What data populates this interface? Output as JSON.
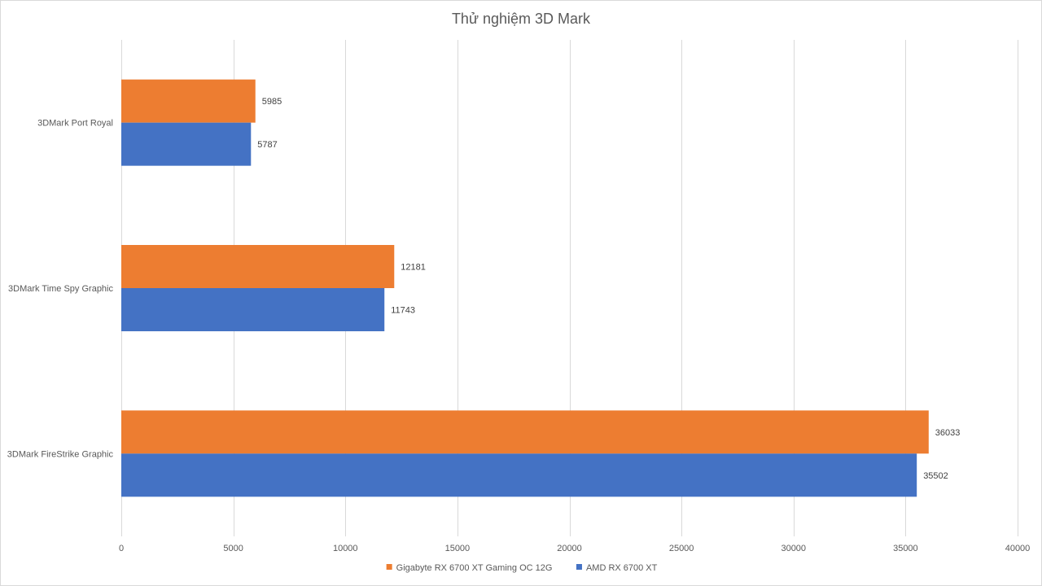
{
  "chart_data": {
    "type": "bar",
    "orientation": "horizontal",
    "title": "Thử nghiệm 3D Mark",
    "xlabel": "",
    "ylabel": "",
    "categories": [
      "3DMark Port Royal",
      "3DMark Time Spy Graphic",
      "3DMark FireStrike Graphic"
    ],
    "series": [
      {
        "name": "Gigabyte RX 6700 XT Gaming OC 12G",
        "values": [
          5985,
          12181,
          36033
        ],
        "color": "#ED7D31"
      },
      {
        "name": "AMD RX 6700 XT",
        "values": [
          5787,
          11743,
          35502
        ],
        "color": "#4472C4"
      }
    ],
    "xlim": [
      0,
      40000
    ],
    "xticks": [
      0,
      5000,
      10000,
      15000,
      20000,
      25000,
      30000,
      35000,
      40000
    ],
    "grid": true,
    "legend_position": "bottom",
    "data_labels": true
  }
}
